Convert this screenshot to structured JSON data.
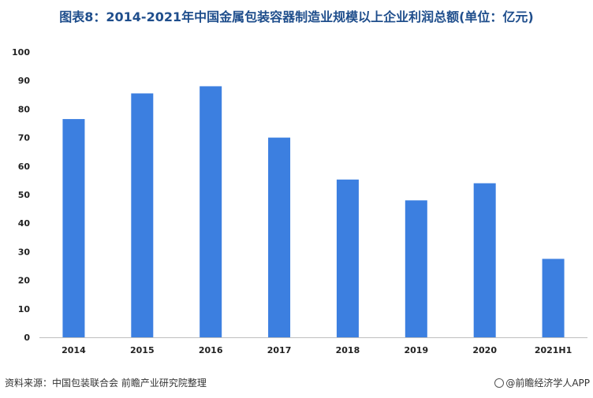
{
  "title": "图表8：2014-2021年中国金属包装容器制造业规模以上企业利润总额(单位：亿元)",
  "source": "资料来源：中国包装联合会 前瞻产业研究院整理",
  "credit": "@前瞻经济学人APP",
  "colors": {
    "bar": "#3c7fe0",
    "title": "#1f4e8c"
  },
  "chart_data": {
    "type": "bar",
    "title": "图表8：2014-2021年中国金属包装容器制造业规模以上企业利润总额(单位：亿元)",
    "xlabel": "",
    "ylabel": "",
    "categories": [
      "2014",
      "2015",
      "2016",
      "2017",
      "2018",
      "2019",
      "2020",
      "2021H1"
    ],
    "values": [
      76.5,
      85.5,
      88,
      70,
      55.3,
      48,
      54,
      27.5
    ],
    "ylim": [
      0,
      100
    ],
    "yticks": [
      0,
      10,
      20,
      30,
      40,
      50,
      60,
      70,
      80,
      90,
      100
    ],
    "grid": false,
    "legend": "none"
  }
}
